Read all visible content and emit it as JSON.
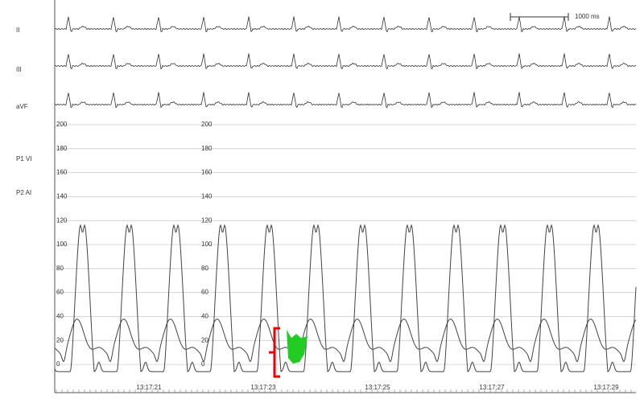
{
  "leads": [
    "II",
    "III",
    "aVF"
  ],
  "channels": [
    "P1 VI",
    "P2 AI"
  ],
  "scale_bar": "1000 ms",
  "pressure_ticks": [
    200,
    180,
    160,
    140,
    120,
    100,
    80,
    60,
    40,
    20,
    0
  ],
  "times": [
    "13:17:21",
    "13:17:23",
    "13:17:25",
    "13:17:27",
    "13:17:29"
  ]
}
